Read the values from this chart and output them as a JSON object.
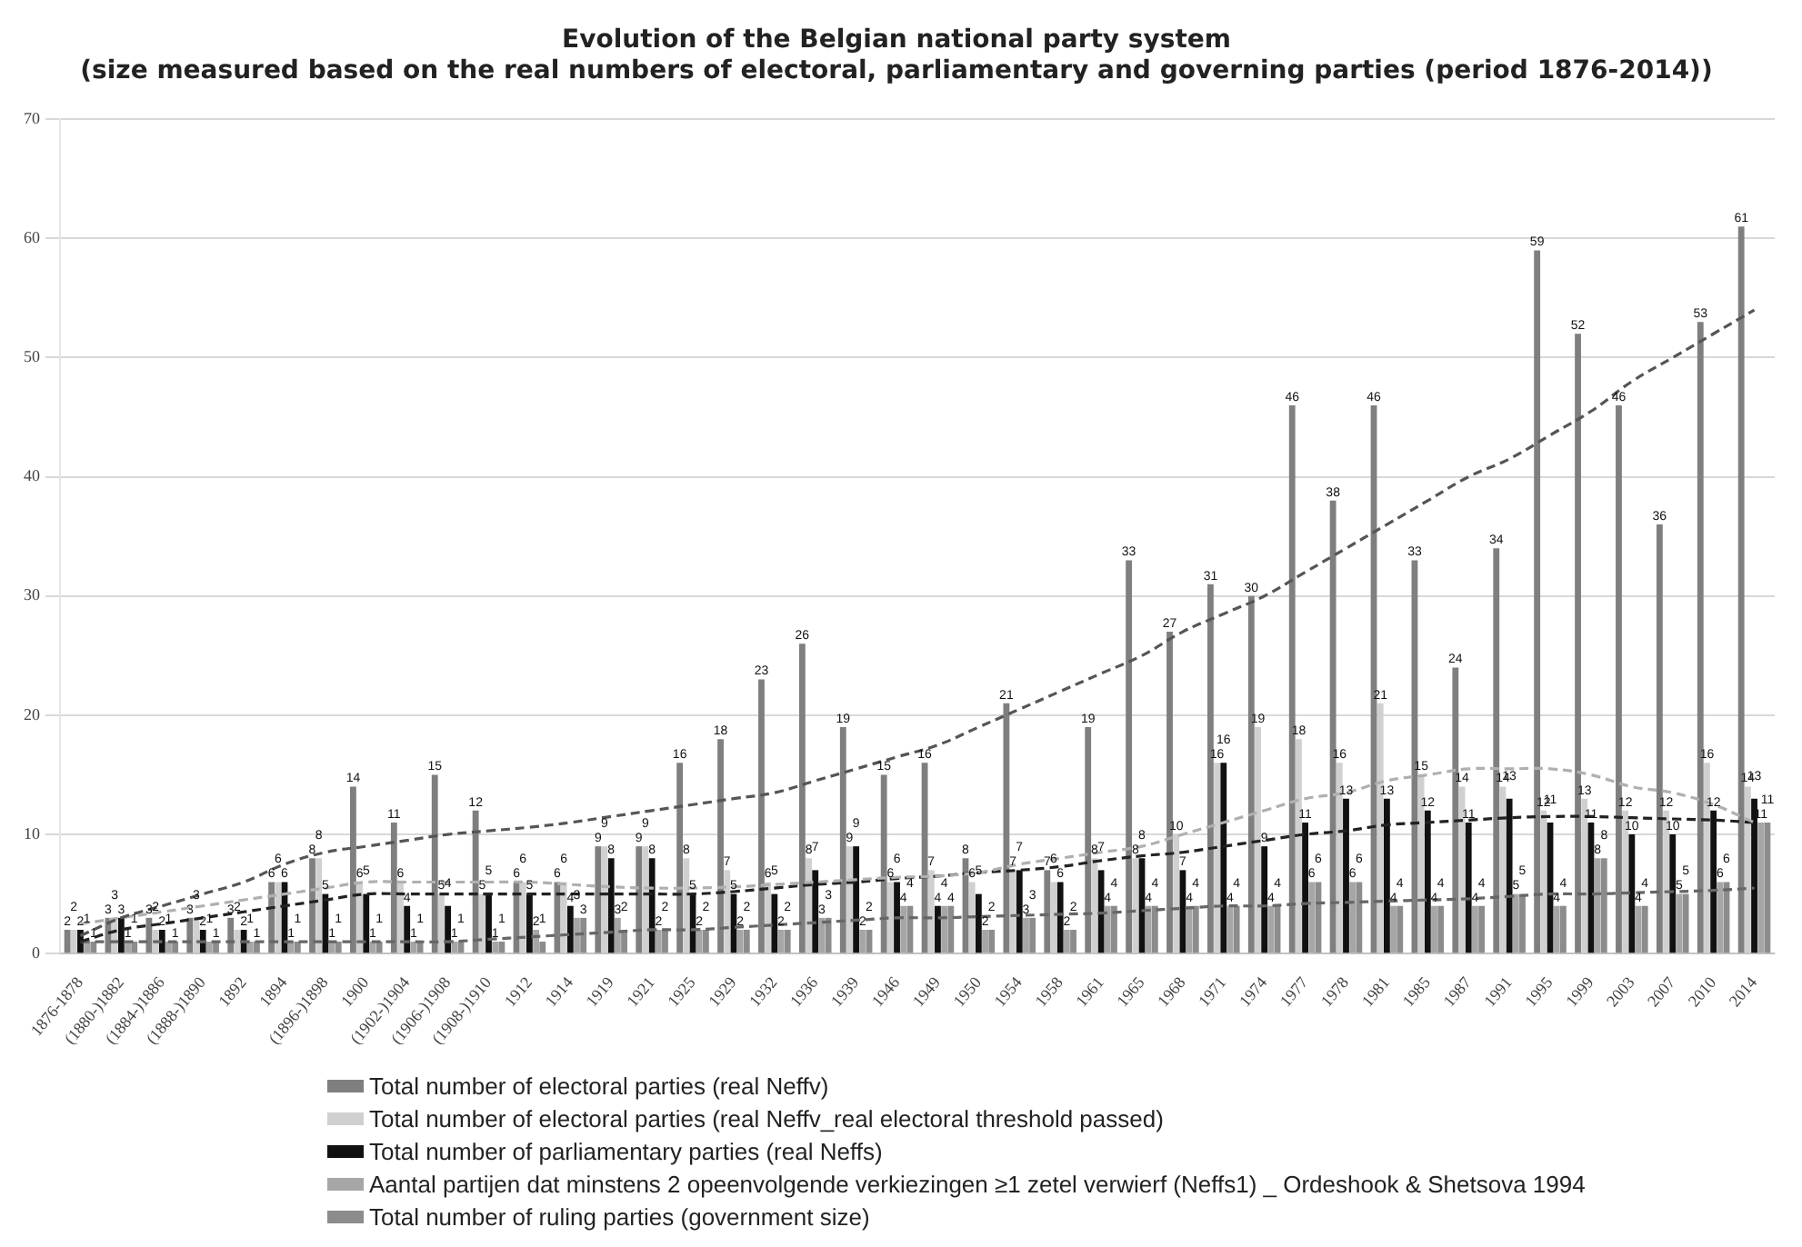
{
  "chart_data": {
    "type": "bar",
    "title": "Evolution of the Belgian national party system",
    "subtitle": "(size measured based on the real numbers of electoral, parliamentary and governing parties (period 1876-2014))",
    "categories": [
      "1876-1878",
      "(1880-)1882",
      "(1884-)1886",
      "(1888-)1890",
      "1892",
      "1894",
      "(1896-)1898",
      "1900",
      "(1902-)1904",
      "(1906-)1908",
      "(1908-)1910",
      "1912",
      "1914",
      "1919",
      "1921",
      "1925",
      "1929",
      "1932",
      "1936",
      "1939",
      "1946",
      "1949",
      "1950",
      "1954",
      "1958",
      "1961",
      "1965",
      "1968",
      "1971",
      "1974",
      "1977",
      "1978",
      "1981",
      "1985",
      "1987",
      "1991",
      "1995",
      "1999",
      "2003",
      "2007",
      "2010",
      "2014"
    ],
    "series": [
      {
        "name": "Total number of electoral parties (real Neffv)",
        "color": "#7f7f7f",
        "values": [
          2,
          3,
          3,
          3,
          3,
          6,
          8,
          14,
          11,
          15,
          12,
          6,
          6,
          9,
          9,
          16,
          18,
          23,
          26,
          19,
          15,
          16,
          8,
          21,
          7,
          19,
          33,
          27,
          31,
          30,
          46,
          38,
          46,
          33,
          24,
          34,
          59,
          52,
          46,
          36,
          53,
          61
        ],
        "value_labels": [
          "2",
          "3",
          "3",
          "3",
          "3",
          "6",
          "8",
          "14",
          "11",
          "15",
          "12",
          "6",
          "6",
          "9",
          "9",
          "16",
          "18",
          "23",
          "26",
          "19",
          "15",
          "16",
          "8",
          "21",
          "7",
          "19",
          "33",
          "27",
          "31",
          "30",
          "46",
          "38",
          "46",
          "33",
          "24",
          "34",
          "59",
          "52",
          "46",
          "36",
          "53",
          "61"
        ]
      },
      {
        "name": "Total number of electoral parties (real Neffv_real electoral threshold passed)",
        "color": "#d0d0d0",
        "values": [
          2,
          3,
          2,
          3,
          2,
          6,
          8,
          6,
          6,
          5,
          5,
          6,
          6,
          9,
          9,
          8,
          7,
          6,
          8,
          9,
          6,
          7,
          6,
          7,
          6,
          8,
          8,
          10,
          16,
          19,
          18,
          16,
          21,
          15,
          14,
          14,
          12,
          13,
          12,
          12,
          16,
          14
        ],
        "value_labels": [
          "2",
          "3",
          "2",
          "3",
          "2",
          "6",
          "8",
          "6",
          "6",
          "5",
          "5",
          "6",
          "6",
          "9",
          "9",
          "8",
          "7",
          "6",
          "8",
          "9",
          "6",
          "7",
          "6",
          "7",
          "6",
          "8",
          "8",
          "10",
          "16",
          "19",
          "18",
          "16",
          "21",
          "15",
          "14",
          "14",
          "12",
          "13",
          "12",
          "12",
          "16",
          "14"
        ]
      },
      {
        "name": "Total number of parliamentary parties (real Neffs)",
        "color": "#111111",
        "values": [
          2,
          3,
          2,
          2,
          2,
          6,
          5,
          5,
          4,
          4,
          5,
          5,
          4,
          8,
          8,
          5,
          5,
          5,
          7,
          9,
          6,
          4,
          5,
          7,
          6,
          7,
          8,
          7,
          16,
          9,
          11,
          13,
          13,
          12,
          11,
          13,
          11,
          11,
          10,
          10,
          12,
          13
        ],
        "value_labels": [
          "2",
          "3",
          "2",
          "2",
          "2",
          "6",
          "5",
          "5",
          "4",
          "4",
          "5",
          "5",
          "4",
          "8",
          "8",
          "5",
          "5",
          "5",
          "7",
          "9",
          "6",
          "4",
          "5",
          "7",
          "6",
          "7",
          "8",
          "7",
          "16",
          "9",
          "11",
          "13",
          "13",
          "12",
          "11",
          "13",
          "11",
          "11",
          "10",
          "10",
          "12",
          "13"
        ]
      },
      {
        "name": "Aantal partijen dat minstens 2 opeenvolgende verkiezingen ≥1 zetel verwierf (Neffs1) _ Ordeshook & Shetsova 1994",
        "color": "#a6a6a6",
        "values": [
          1,
          1,
          1,
          1,
          1,
          1,
          1,
          1,
          1,
          1,
          1,
          2,
          3,
          3,
          2,
          2,
          2,
          2,
          3,
          2,
          4,
          4,
          2,
          3,
          2,
          4,
          4,
          4,
          4,
          4,
          6,
          6,
          4,
          4,
          4,
          5,
          4,
          8,
          4,
          5,
          6,
          11
        ],
        "value_labels": [
          "1",
          "1",
          "1",
          "1",
          "1",
          "1",
          "1",
          "1",
          "1",
          "1",
          "1",
          "2",
          "3",
          "3",
          "2",
          "2",
          "2",
          "2",
          "3",
          "2",
          "4",
          "4",
          "2",
          "3",
          "2",
          "4",
          "4",
          "4",
          "4",
          "4",
          "6",
          "6",
          "4",
          "4",
          "4",
          "5",
          "4",
          "8",
          "4",
          "5",
          "6",
          "11"
        ]
      },
      {
        "name": "Total number of ruling parties (government size)",
        "color": "#8c8c8c",
        "values": [
          1,
          1,
          1,
          1,
          1,
          1,
          1,
          1,
          1,
          1,
          1,
          1,
          3,
          2,
          2,
          2,
          2,
          2,
          3,
          2,
          4,
          4,
          2,
          3,
          2,
          4,
          4,
          4,
          4,
          4,
          6,
          6,
          4,
          4,
          4,
          5,
          4,
          8,
          4,
          5,
          6,
          11
        ],
        "value_labels": [
          "1",
          "1",
          "1",
          "1",
          "1",
          "1",
          "1",
          "1",
          "1",
          "1",
          "1",
          "1",
          "3",
          "2",
          "2",
          "2",
          "2",
          "2",
          "3",
          "2",
          "4",
          "4",
          "2",
          "3",
          "2",
          "4",
          "4",
          "4",
          "4",
          "4",
          "6",
          "6",
          "4",
          "4",
          "4",
          "5",
          "4",
          "8",
          "4",
          "5",
          "6",
          "11"
        ]
      },
      {
        "type": "line",
        "color": "#555555",
        "line_style": "dashed",
        "values": [
          1.5,
          3,
          4,
          5,
          6,
          7.5,
          8.5,
          9,
          9.5,
          10,
          10.3,
          10.6,
          11,
          11.5,
          12,
          12.5,
          13,
          13.5,
          14.5,
          15.5,
          16.5,
          17.5,
          19,
          20.5,
          22,
          23.5,
          25,
          27,
          28.5,
          30,
          32,
          34,
          36,
          38,
          40,
          41.5,
          43.5,
          45.5,
          48,
          50,
          52,
          54
        ]
      },
      {
        "type": "line",
        "color": "#b0b0b0",
        "line_style": "dashed",
        "values": [
          2.5,
          3,
          3.5,
          4,
          4.5,
          5,
          5.5,
          6,
          6,
          6,
          6,
          6,
          5.8,
          5.6,
          5.5,
          5.5,
          5.6,
          5.8,
          6,
          6.2,
          6.4,
          6.5,
          6.8,
          7.5,
          8,
          8.5,
          9,
          10,
          11,
          12,
          13,
          13.5,
          14.5,
          15,
          15.5,
          15.5,
          15.5,
          15,
          14,
          13.5,
          12.5,
          11
        ]
      },
      {
        "type": "line",
        "color": "#222222",
        "line_style": "dashed",
        "values": [
          1,
          2,
          2.5,
          3,
          3.5,
          4,
          4.5,
          5,
          5,
          5,
          5,
          5,
          5,
          5,
          5,
          5,
          5.2,
          5.5,
          5.8,
          6,
          6.3,
          6.5,
          6.8,
          7,
          7.3,
          7.8,
          8.2,
          8.5,
          9,
          9.5,
          10,
          10.3,
          10.8,
          11,
          11.2,
          11.4,
          11.5,
          11.5,
          11.4,
          11.3,
          11.2,
          11
        ]
      },
      {
        "type": "line",
        "color": "#666666",
        "line_style": "dashed",
        "values": [
          1,
          1,
          1,
          1,
          1,
          1,
          1,
          1,
          1,
          1,
          1.2,
          1.4,
          1.6,
          1.8,
          2,
          2,
          2.2,
          2.4,
          2.6,
          2.8,
          3,
          3,
          3.1,
          3.2,
          3.3,
          3.4,
          3.6,
          3.8,
          4,
          4,
          4.2,
          4.3,
          4.4,
          4.5,
          4.6,
          4.8,
          5,
          5,
          5.1,
          5.2,
          5.3,
          5.5
        ]
      }
    ],
    "ylim": [
      0,
      70
    ],
    "yticks": [
      0,
      10,
      20,
      30,
      40,
      50,
      60,
      70
    ],
    "grid": "y",
    "legend": "bottom"
  }
}
